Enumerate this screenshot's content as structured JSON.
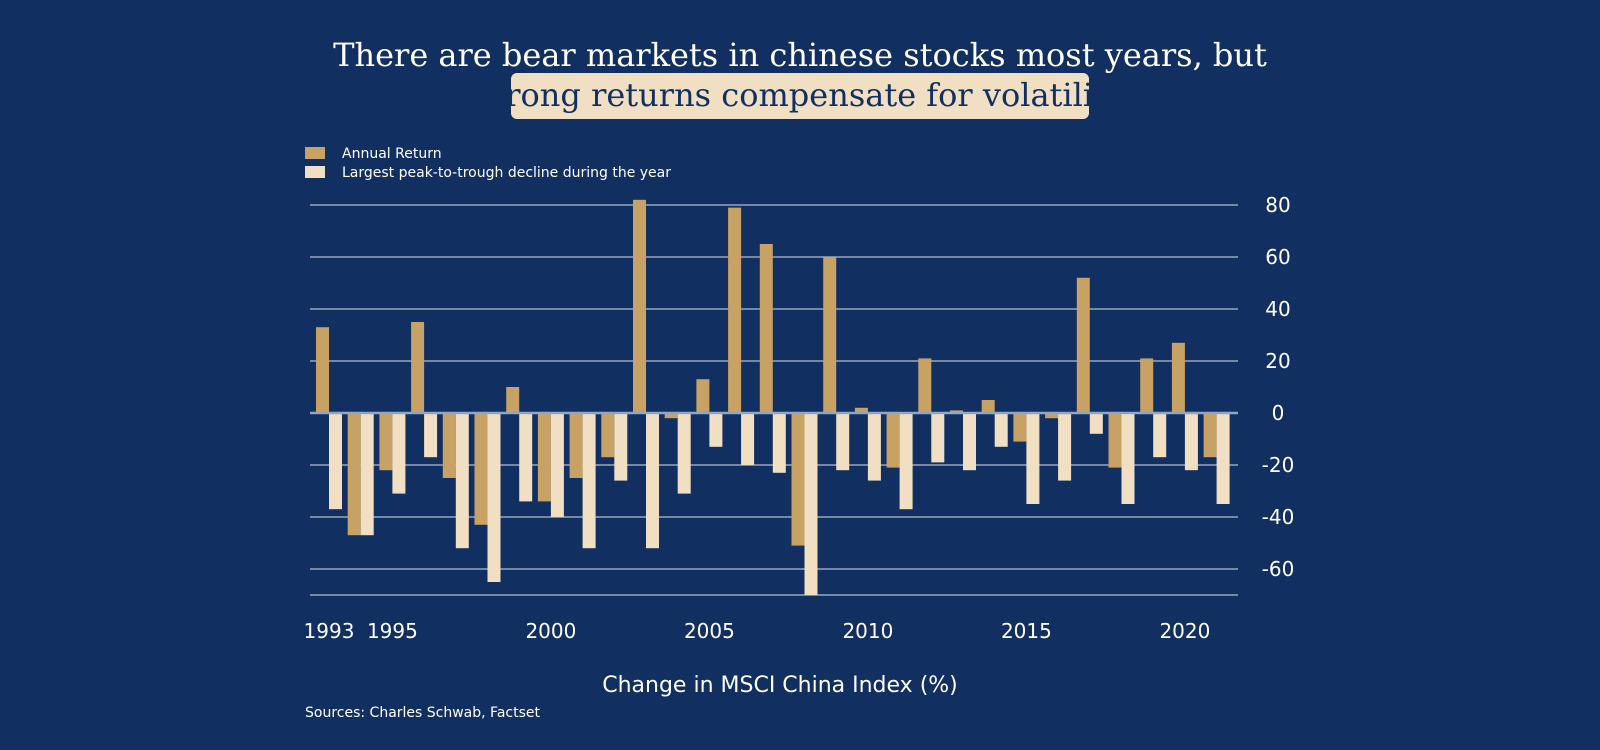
{
  "title": {
    "line1": "There are bear markets in chinese stocks most years, but",
    "line2": "strong returns compensate for volatility"
  },
  "legend": {
    "annual_return": "Annual Return",
    "largest_decline": "Largest peak-to-trough decline during the year"
  },
  "xlabel": "Change in MSCI China Index (%)",
  "source": "Sources: Charles Schwab, Factset",
  "colors": {
    "background": "#122f62",
    "annual_return": "#c8a165",
    "largest_decline": "#f0dfc3",
    "highlight": "#f0dfc3",
    "text": "#ffffff"
  },
  "chart_data": {
    "type": "bar",
    "categories": [
      "1993",
      "1994",
      "1995",
      "1996",
      "1997",
      "1998",
      "1999",
      "2000",
      "2001",
      "2002",
      "2003",
      "2004",
      "2005",
      "2006",
      "2007",
      "2008",
      "2009",
      "2010",
      "2011",
      "2012",
      "2013",
      "2014",
      "2015",
      "2016",
      "2017",
      "2018",
      "2019",
      "2020",
      "2021"
    ],
    "x_tick_labels": [
      "1993",
      "1995",
      "2000",
      "2005",
      "2010",
      "2015",
      "2020"
    ],
    "y_tick_labels": [
      "80",
      "60",
      "40",
      "20",
      "0",
      "-20",
      "-40",
      "-60"
    ],
    "ylim": [
      -70,
      83
    ],
    "grid": true,
    "legend_position": "top-left",
    "series": [
      {
        "name": "Annual Return",
        "values": [
          33,
          -47,
          -22,
          35,
          -25,
          -43,
          10,
          -34,
          -25,
          -17,
          82,
          -2,
          13,
          79,
          65,
          -51,
          60,
          2,
          -21,
          21,
          1,
          5,
          -11,
          -2,
          52,
          -21,
          21,
          27,
          -17
        ]
      },
      {
        "name": "Largest peak-to-trough decline during the year",
        "values": [
          -37,
          -47,
          -31,
          -17,
          -52,
          -65,
          -34,
          -40,
          -52,
          -26,
          -52,
          -31,
          -13,
          -20,
          -23,
          -70,
          -22,
          -26,
          -37,
          -19,
          -22,
          -13,
          -35,
          -26,
          -8,
          -35,
          -17,
          -22,
          -35
        ]
      }
    ]
  }
}
